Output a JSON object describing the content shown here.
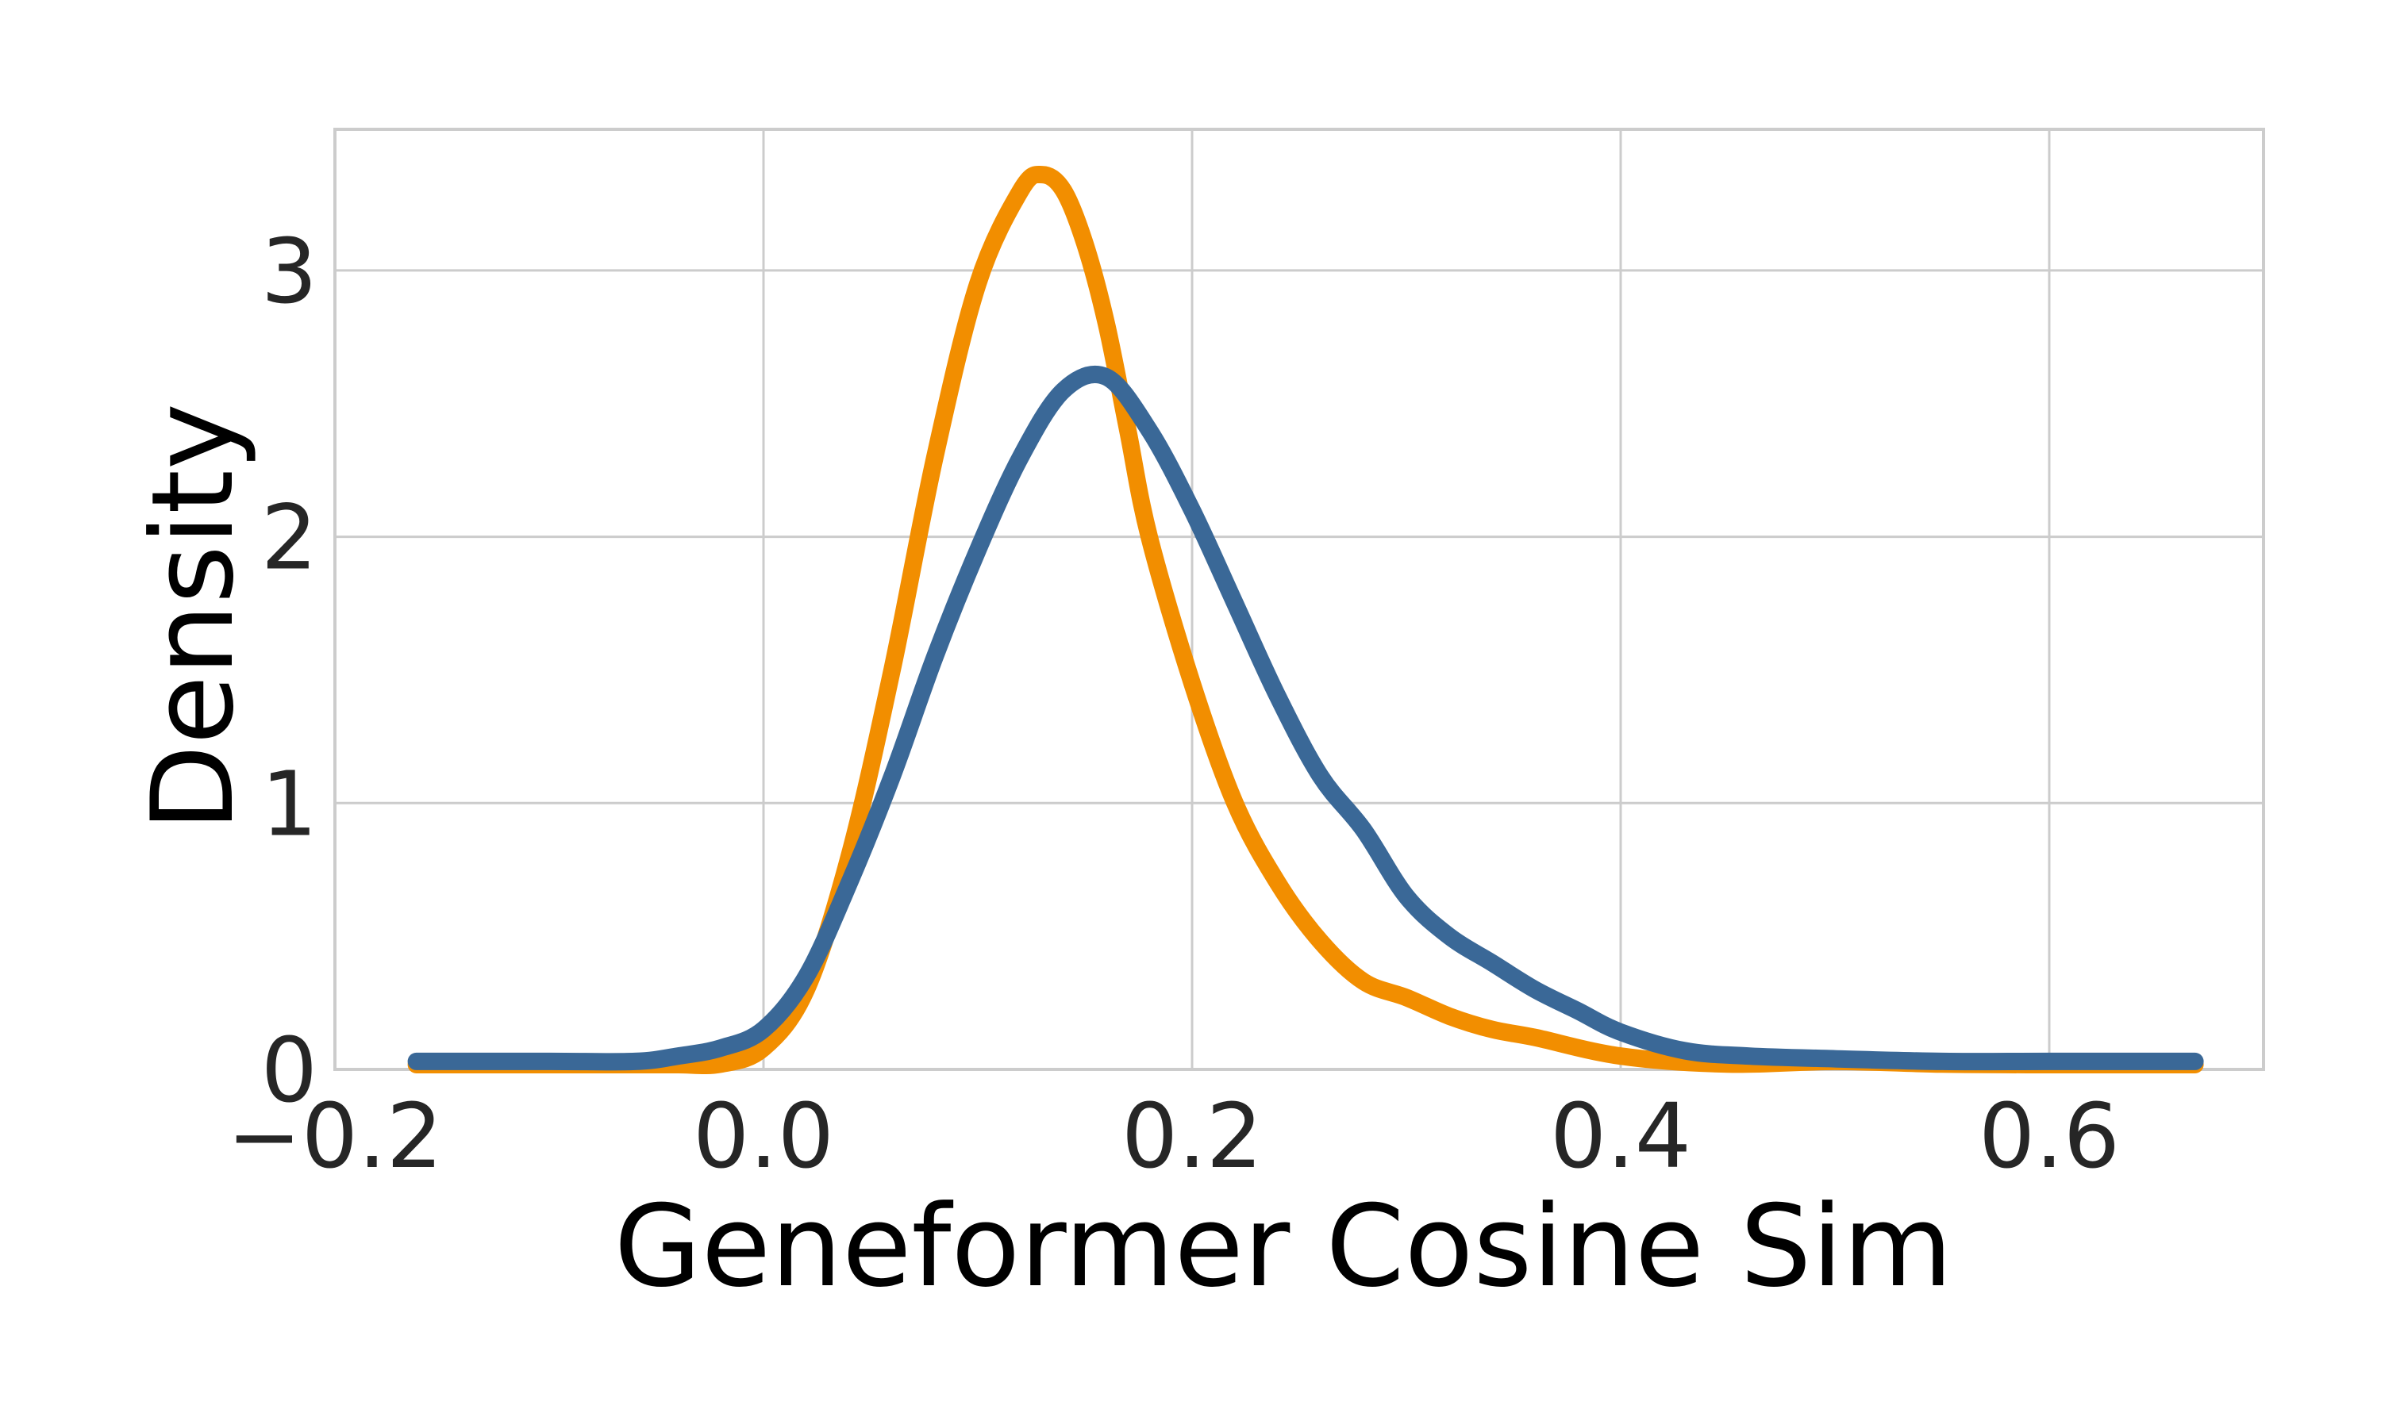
{
  "chart_data": {
    "type": "line",
    "title": "",
    "xlabel": "Geneformer Cosine Sim",
    "ylabel": "Density",
    "xlim": [
      -0.2,
      0.7
    ],
    "ylim": [
      0,
      3.53
    ],
    "xticks": [
      -0.2,
      0.0,
      0.2,
      0.4,
      0.6
    ],
    "xtick_labels": [
      "−0.2",
      "0.0",
      "0.2",
      "0.4",
      "0.6"
    ],
    "yticks": [
      0,
      1,
      2,
      3
    ],
    "ytick_labels": [
      "0",
      "1",
      "2",
      "3"
    ],
    "grid": true,
    "legend": "none",
    "series": [
      {
        "color": "#f28e00",
        "x": [
          -0.162,
          -0.1,
          -0.06,
          -0.04,
          -0.02,
          0.0,
          0.02,
          0.04,
          0.06,
          0.08,
          0.1,
          0.12,
          0.13,
          0.14,
          0.15,
          0.16,
          0.17,
          0.18,
          0.2,
          0.22,
          0.24,
          0.26,
          0.28,
          0.3,
          0.32,
          0.34,
          0.36,
          0.4,
          0.45,
          0.5,
          0.55,
          0.6,
          0.668
        ],
        "y": [
          0.0,
          0.0,
          0.0,
          0.0,
          0.02,
          0.08,
          0.3,
          0.8,
          1.5,
          2.3,
          2.95,
          3.3,
          3.36,
          3.3,
          3.1,
          2.8,
          2.4,
          2.0,
          1.45,
          1.0,
          0.7,
          0.48,
          0.33,
          0.27,
          0.2,
          0.15,
          0.12,
          0.05,
          0.02,
          0.03,
          0.02,
          0.01,
          0.01
        ]
      },
      {
        "color": "#3a6897",
        "x": [
          -0.162,
          -0.1,
          -0.06,
          -0.04,
          -0.02,
          0.0,
          0.02,
          0.04,
          0.06,
          0.08,
          0.1,
          0.12,
          0.14,
          0.16,
          0.18,
          0.2,
          0.22,
          0.24,
          0.26,
          0.28,
          0.3,
          0.32,
          0.34,
          0.36,
          0.38,
          0.4,
          0.43,
          0.46,
          0.5,
          0.55,
          0.6,
          0.668
        ],
        "y": [
          0.03,
          0.03,
          0.03,
          0.05,
          0.08,
          0.15,
          0.35,
          0.7,
          1.1,
          1.55,
          1.95,
          2.3,
          2.55,
          2.6,
          2.4,
          2.1,
          1.75,
          1.4,
          1.1,
          0.9,
          0.65,
          0.5,
          0.4,
          0.3,
          0.22,
          0.14,
          0.07,
          0.05,
          0.04,
          0.03,
          0.03,
          0.03
        ]
      }
    ]
  }
}
